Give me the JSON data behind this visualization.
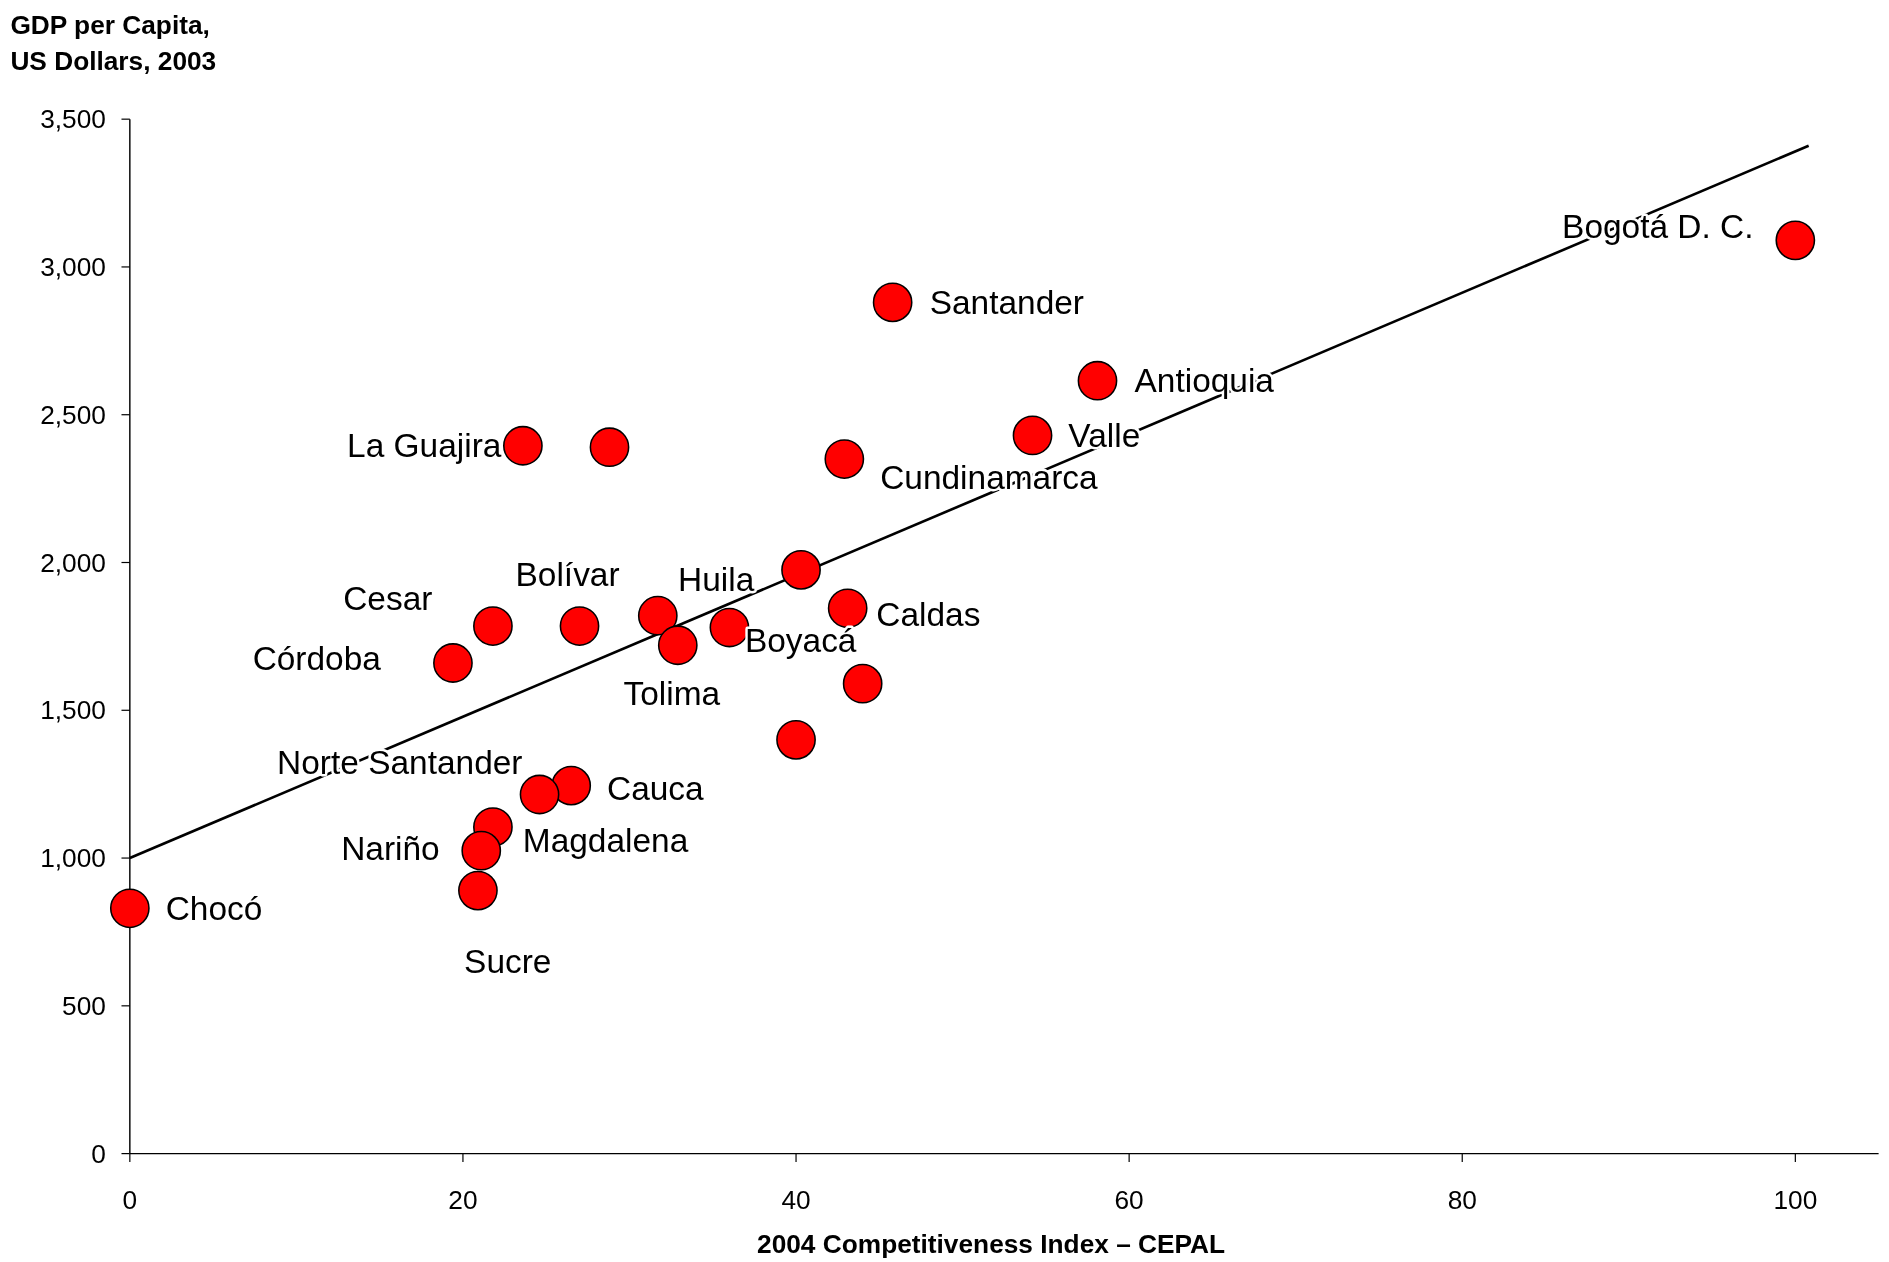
{
  "chart_data": {
    "type": "scatter",
    "xlabel": "2004 Competitiveness Index – CEPAL",
    "ylabel": "GDP per Capita,\nUS Dollars, 2003",
    "series": [
      {
        "color": "#ff0000",
        "marker": "circle",
        "x": [
          100,
          45.8,
          58.1,
          54.2,
          42.9,
          23.6,
          28.8,
          40.3,
          43.1,
          44.0,
          40.0,
          27.0,
          21.8,
          19.4,
          31.7,
          32.9,
          36.0,
          26.5,
          24.6,
          21.8,
          21.1,
          20.9,
          0
        ],
        "values": [
          3090,
          2880,
          2615,
          2430,
          2350,
          2395,
          2390,
          1975,
          1845,
          1590,
          1400,
          1785,
          1785,
          1660,
          1820,
          1720,
          1780,
          1245,
          1215,
          1105,
          1025,
          890,
          830
        ]
      },
      {
        "type": "line",
        "color": "#000000",
        "marker": "none",
        "x": [
          0,
          100.8
        ],
        "values": [
          1000,
          3410
        ]
      }
    ],
    "annotations": [
      {
        "text": "Bogotá D. C.",
        "x": 100,
        "y": 3090
      },
      {
        "text": "Santander",
        "x": 45.8,
        "y": 2880
      },
      {
        "text": "Antioquia",
        "x": 58.1,
        "y": 2615
      },
      {
        "text": "Valle",
        "x": 54.2,
        "y": 2430
      },
      {
        "text": "Cundinamarca",
        "x": 42.9,
        "y": 2350
      },
      {
        "text": "La Guajira",
        "x": 23.6,
        "y": 2395
      },
      {
        "text": "Huila",
        "x": 40.3,
        "y": 1975
      },
      {
        "text": "Caldas",
        "x": 43.1,
        "y": 1845
      },
      {
        "text": "Bolívar",
        "x": 27.0,
        "y": 1785
      },
      {
        "text": "Cesar",
        "x": 21.8,
        "y": 1785
      },
      {
        "text": "Córdoba",
        "x": 19.4,
        "y": 1660
      },
      {
        "text": "Tolima",
        "x": 32.9,
        "y": 1720
      },
      {
        "text": "Boyacá",
        "x": 36.0,
        "y": 1780
      },
      {
        "text": "Cauca",
        "x": 26.5,
        "y": 1245
      },
      {
        "text": "Norte Santander",
        "x": 24.6,
        "y": 1215
      },
      {
        "text": "Magdalena",
        "x": 21.8,
        "y": 1105
      },
      {
        "text": "Nariño",
        "x": 21.1,
        "y": 1025
      },
      {
        "text": "Sucre",
        "x": 20.9,
        "y": 890
      },
      {
        "text": "Chocó",
        "x": 0,
        "y": 830
      }
    ],
    "xlim": [
      0,
      105
    ],
    "ylim": [
      0,
      3500
    ],
    "xticks": [
      0,
      20,
      40,
      60,
      80,
      100
    ],
    "yticks": [
      0,
      500,
      {
        "value": 1000,
        "label": "1,000"
      },
      {
        "value": 1500,
        "label": "1,500"
      },
      {
        "value": 2000,
        "label": "2,000"
      },
      {
        "value": 2500,
        "label": "2,500"
      },
      {
        "value": 3000,
        "label": "3,000"
      },
      {
        "value": 3500,
        "label": "3,500"
      }
    ],
    "grid": false
  }
}
